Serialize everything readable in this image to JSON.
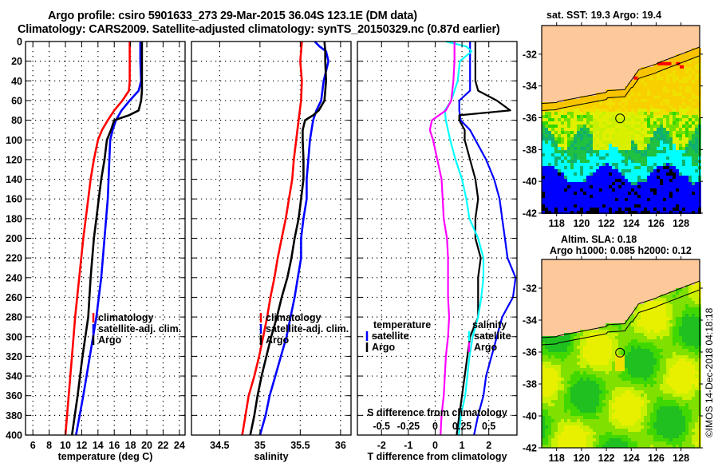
{
  "header": {
    "line1": "Argo profile: csiro 5901633_273 29-Mar-2015 36.04S 123.1E (DM data)",
    "line2": "Climatology: CARS2009. Satellite-adjusted climatology: synTS_20150329.nc (0.87d earlier)"
  },
  "colors": {
    "climatology": "#ff0000",
    "satellite": "#0000ff",
    "argo": "#000000",
    "salinity_satellite": "#00ffff",
    "salinity_argo": "#ff00ff",
    "land": "#fdc99a"
  },
  "chart_data": [
    {
      "type": "line",
      "id": "temperature",
      "xlabel": "temperature (deg C)",
      "ylabel": "",
      "xlim": [
        5.1,
        24.7
      ],
      "ylim": [
        400,
        0
      ],
      "xticks": [
        6,
        8,
        10,
        12,
        14,
        16,
        18,
        20,
        22,
        24
      ],
      "yticks": [
        0,
        20,
        40,
        60,
        80,
        100,
        120,
        140,
        160,
        180,
        200,
        220,
        240,
        260,
        280,
        300,
        320,
        340,
        360,
        380,
        400
      ],
      "grid": true,
      "legend": {
        "position": "lower-right",
        "entries": [
          "climatology",
          "satellite-adj. clim.",
          "Argo"
        ]
      },
      "series": [
        {
          "name": "climatology",
          "color_key": "climatology",
          "depth": [
            0,
            20,
            40,
            50,
            60,
            70,
            80,
            90,
            100,
            120,
            140,
            160,
            180,
            200,
            240,
            280,
            320,
            360,
            400
          ],
          "values": [
            17.9,
            17.9,
            17.9,
            17.8,
            17.0,
            16.0,
            15.2,
            14.5,
            14.0,
            13.5,
            13.1,
            12.8,
            12.5,
            12.2,
            11.7,
            11.2,
            10.8,
            10.4,
            10.0
          ]
        },
        {
          "name": "satellite-adj. clim.",
          "color_key": "satellite",
          "depth": [
            0,
            20,
            40,
            50,
            60,
            70,
            80,
            90,
            100,
            120,
            140,
            160,
            180,
            200,
            240,
            280,
            320,
            360,
            400
          ],
          "values": [
            19.2,
            19.2,
            19.3,
            19.0,
            17.9,
            16.9,
            16.2,
            15.8,
            15.5,
            15.4,
            15.3,
            15.2,
            15.0,
            14.8,
            14.4,
            13.8,
            13.0,
            12.2,
            11.3
          ]
        },
        {
          "name": "Argo",
          "color_key": "argo",
          "depth": [
            0,
            20,
            40,
            50,
            60,
            70,
            75,
            80,
            90,
            100,
            120,
            140,
            160,
            180,
            200,
            240,
            280,
            320,
            360,
            400
          ],
          "values": [
            19.4,
            19.4,
            19.4,
            19.4,
            19.3,
            19.0,
            17.8,
            16.0,
            15.6,
            15.1,
            14.8,
            14.4,
            14.1,
            13.8,
            13.5,
            13.1,
            12.8,
            12.1,
            11.5,
            10.8
          ]
        }
      ]
    },
    {
      "type": "line",
      "id": "salinity",
      "xlabel": "salinity",
      "xlim": [
        34.15,
        36.13
      ],
      "ylim": [
        400,
        0
      ],
      "xticks": [
        34.5,
        35,
        35.5,
        36
      ],
      "grid": true,
      "legend": {
        "position": "lower-right",
        "entries": [
          "climatology",
          "satellite-adj. clim.",
          "Argo"
        ]
      },
      "series": [
        {
          "name": "climatology",
          "color_key": "climatology",
          "depth": [
            0,
            20,
            40,
            60,
            80,
            100,
            120,
            140,
            160,
            180,
            200,
            220,
            240,
            260,
            280,
            300,
            320,
            340,
            360,
            380,
            400
          ],
          "values": [
            35.52,
            35.5,
            35.52,
            35.51,
            35.48,
            35.45,
            35.42,
            35.4,
            35.36,
            35.32,
            35.27,
            35.22,
            35.18,
            35.13,
            35.09,
            35.04,
            34.99,
            34.93,
            34.86,
            34.82,
            34.78
          ]
        },
        {
          "name": "satellite-adj. clim.",
          "color_key": "satellite",
          "depth": [
            0,
            5,
            10,
            20,
            40,
            60,
            70,
            80,
            100,
            120,
            140,
            160,
            180,
            200,
            220,
            240,
            260,
            280,
            300,
            320,
            340,
            360,
            380,
            400
          ],
          "values": [
            35.68,
            35.74,
            35.82,
            35.85,
            35.79,
            35.76,
            35.7,
            35.66,
            35.62,
            35.6,
            35.58,
            35.58,
            35.54,
            35.51,
            35.51,
            35.47,
            35.43,
            35.38,
            35.33,
            35.26,
            35.19,
            35.12,
            35.07,
            35.0
          ]
        },
        {
          "name": "Argo",
          "color_key": "argo",
          "depth": [
            0,
            10,
            20,
            40,
            60,
            70,
            75,
            80,
            90,
            100,
            120,
            140,
            160,
            180,
            200,
            220,
            240,
            260,
            280,
            300,
            320,
            340,
            360,
            380,
            400
          ],
          "values": [
            35.8,
            35.81,
            35.81,
            35.82,
            35.8,
            35.73,
            35.66,
            35.56,
            35.53,
            35.53,
            35.54,
            35.54,
            35.51,
            35.48,
            35.43,
            35.39,
            35.34,
            35.27,
            35.21,
            35.14,
            35.08,
            35.02,
            34.97,
            34.93,
            34.88
          ]
        }
      ]
    },
    {
      "type": "line",
      "id": "differences",
      "xlabel": "T difference from climatology",
      "xlabel2": "S difference from climatology",
      "xlim": [
        -2.9,
        3.05
      ],
      "xlim_S": [
        -0.725,
        0.7625
      ],
      "ylim": [
        400,
        0
      ],
      "xticks": [
        -2,
        -1,
        0,
        1,
        2
      ],
      "xticks_S": [
        -0.5,
        -0.25,
        0,
        0.25,
        0.5
      ],
      "xtick_labels_S": [
        "-0.5",
        "-0.25",
        "0",
        "0.25",
        "0.5"
      ],
      "grid": true,
      "legend": {
        "position": "lower",
        "temperature_title": "temperature",
        "salinity_title": "salinity",
        "temperature_entries": [
          "satellite",
          "Argo"
        ],
        "salinity_entries": [
          "satellite",
          "Argo"
        ]
      },
      "series": [
        {
          "name": "temperature satellite",
          "axis": "T",
          "color_key": "satellite",
          "depth": [
            0,
            20,
            40,
            50,
            60,
            70,
            80,
            90,
            100,
            120,
            140,
            160,
            180,
            200,
            220,
            240,
            260,
            280,
            300,
            320,
            340,
            360,
            380,
            400
          ],
          "values": [
            1.3,
            1.3,
            1.3,
            1.3,
            0.9,
            0.9,
            0.95,
            1.3,
            1.5,
            1.9,
            2.2,
            2.4,
            2.5,
            2.6,
            2.7,
            3.0,
            2.9,
            2.5,
            2.3,
            2.1,
            1.9,
            1.8,
            1.6,
            1.45
          ]
        },
        {
          "name": "temperature Argo",
          "axis": "T",
          "color_key": "argo",
          "depth": [
            0,
            20,
            40,
            50,
            60,
            70,
            75,
            80,
            90,
            100,
            120,
            140,
            160,
            180,
            200,
            220,
            240,
            260,
            280,
            300,
            320,
            340,
            360,
            380,
            400
          ],
          "values": [
            1.5,
            1.5,
            1.5,
            1.6,
            2.3,
            2.8,
            0.9,
            0.9,
            1.1,
            1.1,
            1.3,
            1.5,
            1.6,
            1.5,
            1.5,
            1.7,
            1.6,
            1.6,
            1.6,
            1.3,
            1.2,
            1.1,
            1.0,
            0.9,
            0.8
          ]
        },
        {
          "name": "salinity satellite",
          "axis": "S",
          "color_key": "salinity_satellite",
          "depth": [
            0,
            5,
            10,
            20,
            40,
            60,
            70,
            80,
            100,
            120,
            140,
            160,
            180,
            200,
            220,
            240,
            260,
            280,
            300,
            320,
            340,
            360,
            380,
            400
          ],
          "values": [
            0.1,
            0.29,
            0.34,
            0.23,
            0.21,
            0.15,
            0.09,
            0.1,
            0.14,
            0.19,
            0.25,
            0.29,
            0.32,
            0.4,
            0.45,
            0.45,
            0.43,
            0.4,
            0.35,
            0.32,
            0.3,
            0.28,
            0.24,
            0.22
          ]
        },
        {
          "name": "salinity Argo",
          "axis": "S",
          "color_key": "salinity_argo",
          "depth": [
            0,
            20,
            40,
            60,
            70,
            80,
            90,
            100,
            120,
            140,
            160,
            180,
            200,
            220,
            240,
            260,
            280,
            300,
            320,
            340,
            360,
            380,
            400
          ],
          "values": [
            0.18,
            0.18,
            0.17,
            0.15,
            0.1,
            -0.03,
            -0.05,
            -0.02,
            0.02,
            0.06,
            0.07,
            0.08,
            0.11,
            0.12,
            0.12,
            0.12,
            0.13,
            0.12,
            0.1,
            0.09,
            0.08,
            0.06,
            0.05
          ]
        }
      ]
    }
  ],
  "maps": [
    {
      "id": "sst-map",
      "title": "sat. SST: 19.3 Argo: 19.4",
      "xticks": [
        118,
        120,
        122,
        124,
        126,
        128
      ],
      "yticks": [
        -32,
        -34,
        -36,
        -38,
        -40,
        -42
      ],
      "xlim": [
        116.8,
        129.5
      ],
      "ylim": [
        -42,
        -30.2
      ],
      "marker": {
        "lon": 123.1,
        "lat": -36.04
      }
    },
    {
      "id": "sla-map",
      "title_line1": "Altim. SLA: 0.18",
      "title_line2": "Argo h1000: 0.085 h2000: 0.12",
      "xticks": [
        118,
        120,
        122,
        124,
        126,
        128
      ],
      "yticks": [
        -32,
        -34,
        -36,
        -38,
        -40,
        -42
      ],
      "xlim": [
        116.8,
        129.5
      ],
      "ylim": [
        -42,
        -30.2
      ],
      "marker": {
        "lon": 123.1,
        "lat": -36.04
      }
    }
  ],
  "credit": "©IMOS 14-Dec-2018 04:18:18"
}
